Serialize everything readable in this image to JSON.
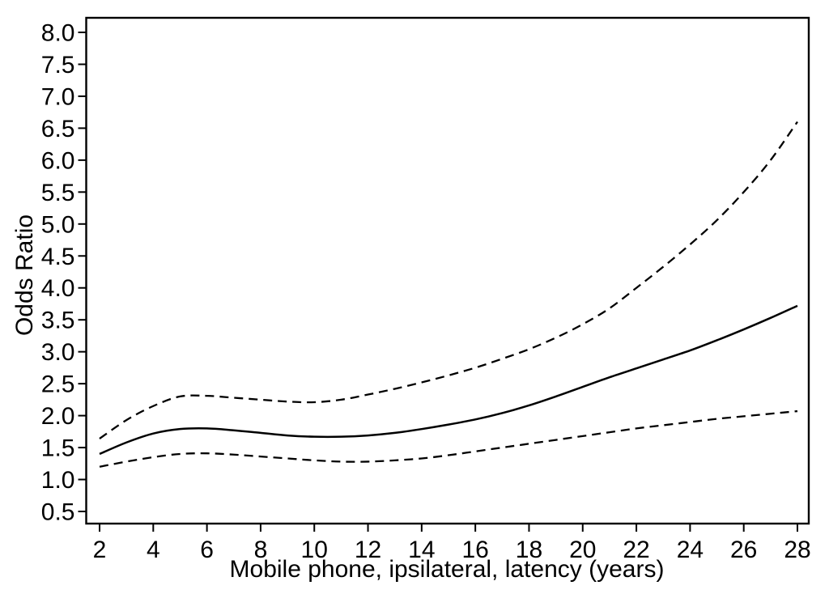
{
  "figure": {
    "background_color": "#ffffff",
    "frame_color": "#000000",
    "line_color": "#000000"
  },
  "chart_data": {
    "type": "line",
    "title": "",
    "xlabel": "Mobile phone, ipsilateral, latency (years)",
    "ylabel": "Odds Ratio",
    "xlim": [
      2,
      28
    ],
    "ylim": [
      0.5,
      8.0
    ],
    "grid": false,
    "legend_position": "none",
    "xticks": [
      2,
      4,
      6,
      8,
      10,
      12,
      14,
      16,
      18,
      20,
      22,
      24,
      26,
      28
    ],
    "xtick_labels": [
      "2",
      "4",
      "6",
      "8",
      "10",
      "12",
      "14",
      "16",
      "18",
      "20",
      "22",
      "24",
      "26",
      "28"
    ],
    "yticks": [
      0.5,
      1.0,
      1.5,
      2.0,
      2.5,
      3.0,
      3.5,
      4.0,
      4.5,
      5.0,
      5.5,
      6.0,
      6.5,
      7.0,
      7.5,
      8.0
    ],
    "ytick_labels": [
      "0.5",
      "1.0",
      "1.5",
      "2.0",
      "2.5",
      "3.0",
      "3.5",
      "4.0",
      "4.5",
      "5.0",
      "5.5",
      "6.0",
      "6.5",
      "7.0",
      "7.5",
      "8.0"
    ],
    "x": [
      2,
      3,
      4,
      5,
      6,
      7,
      8,
      9,
      10,
      11,
      12,
      13,
      14,
      15,
      16,
      17,
      18,
      19,
      20,
      21,
      22,
      23,
      24,
      25,
      26,
      27,
      28
    ],
    "series": [
      {
        "name": "odds-ratio-estimate",
        "style": "solid",
        "values": [
          1.4,
          1.58,
          1.72,
          1.79,
          1.8,
          1.77,
          1.73,
          1.69,
          1.67,
          1.67,
          1.69,
          1.73,
          1.79,
          1.86,
          1.94,
          2.04,
          2.16,
          2.3,
          2.45,
          2.6,
          2.74,
          2.88,
          3.02,
          3.18,
          3.35,
          3.53,
          3.72
        ]
      },
      {
        "name": "upper-confidence-limit",
        "style": "dashed",
        "values": [
          1.64,
          1.93,
          2.15,
          2.3,
          2.31,
          2.28,
          2.25,
          2.22,
          2.21,
          2.25,
          2.33,
          2.42,
          2.52,
          2.63,
          2.75,
          2.89,
          3.04,
          3.22,
          3.43,
          3.68,
          4.0,
          4.33,
          4.68,
          5.06,
          5.5,
          6.0,
          6.6
        ]
      },
      {
        "name": "lower-confidence-limit",
        "style": "dashed",
        "values": [
          1.2,
          1.28,
          1.35,
          1.4,
          1.41,
          1.39,
          1.36,
          1.33,
          1.3,
          1.28,
          1.28,
          1.3,
          1.33,
          1.38,
          1.44,
          1.5,
          1.56,
          1.62,
          1.68,
          1.74,
          1.8,
          1.85,
          1.9,
          1.95,
          1.99,
          2.03,
          2.07
        ]
      }
    ]
  }
}
